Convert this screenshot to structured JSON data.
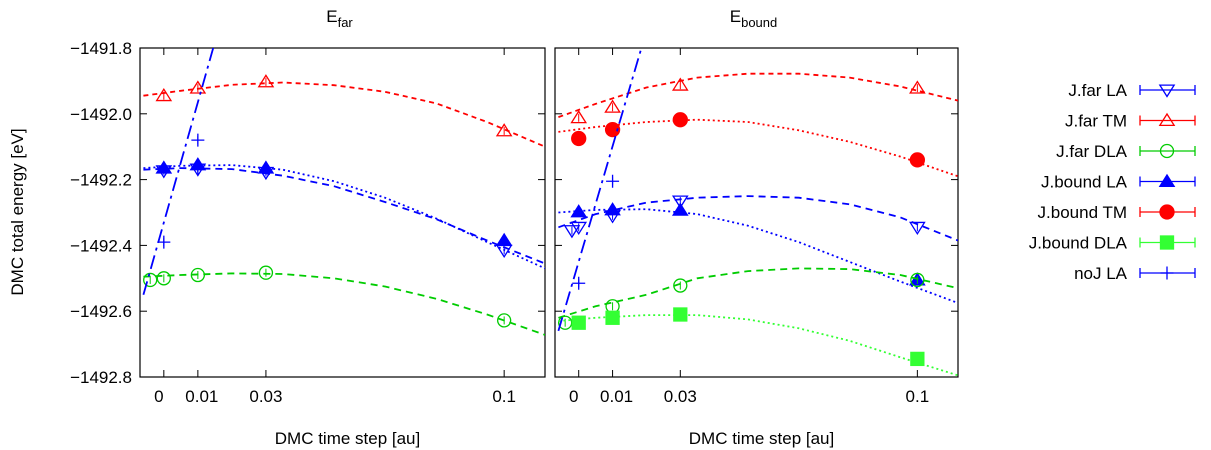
{
  "chart_data": {
    "type": "scatter",
    "ylabel": "DMC total energy [eV]",
    "ylim": [
      -1492.8,
      -1491.8
    ],
    "y_ticks": [
      -1491.8,
      -1492.0,
      -1492.2,
      -1492.4,
      -1492.6,
      -1492.8
    ],
    "y_tick_labels": [
      "−1491.8",
      "−1492.0",
      "−1492.2",
      "−1492.4",
      "−1492.6",
      "−1492.8"
    ],
    "xlim": [
      -0.007,
      0.112
    ],
    "x_ticks": [
      0,
      0.01,
      0.03,
      0.1
    ],
    "x_tick_labels": [
      "0",
      "0.01",
      "0.03",
      "0.1"
    ],
    "grid": false,
    "legend_position": "right",
    "legend": [
      {
        "name": "J.far LA",
        "color": "#0000ff",
        "marker": "triangle-down-open",
        "series": "jfar_la"
      },
      {
        "name": "J.far TM",
        "color": "#ff0000",
        "marker": "triangle-up-open",
        "series": "jfar_tm"
      },
      {
        "name": "J.far DLA",
        "color": "#00cc00",
        "marker": "circle-open",
        "series": "jfar_dla"
      },
      {
        "name": "J.bound LA",
        "color": "#0000ff",
        "marker": "triangle-up-filled",
        "series": "jbound_la"
      },
      {
        "name": "J.bound TM",
        "color": "#ff0000",
        "marker": "circle-filled",
        "series": "jbound_tm"
      },
      {
        "name": "J.bound DLA",
        "color": "#33ff33",
        "marker": "square-filled",
        "series": "jbound_dla"
      },
      {
        "name": "noJ LA",
        "color": "#0000ff",
        "marker": "plus",
        "series": "noj_la"
      }
    ],
    "panels": [
      {
        "title": "E",
        "title_subscript": "far",
        "xlabel": "DMC time step [au]",
        "series": [
          {
            "key": "jfar_tm",
            "color": "#ff0000",
            "marker": "triangle-up-open",
            "x": [
              0,
              0.01,
              0.03,
              0.1
            ],
            "y": [
              -1491.945,
              -1491.922,
              -1491.903,
              -1492.052
            ],
            "fit": {
              "x": [
                -0.006,
                0.005,
                0.02,
                0.035,
                0.05,
                0.065,
                0.08,
                0.095,
                0.112
              ],
              "y": [
                -1491.945,
                -1491.93,
                -1491.912,
                -1491.905,
                -1491.913,
                -1491.933,
                -1491.968,
                -1492.025,
                -1492.1
              ],
              "dash": "5,4"
            }
          },
          {
            "key": "jfar_la",
            "color": "#0000ff",
            "marker": "triangle-down-open",
            "x": [
              0,
              0.01,
              0.03,
              0.1
            ],
            "y": [
              -1492.173,
              -1492.168,
              -1492.178,
              -1492.415
            ],
            "fit": {
              "x": [
                -0.006,
                0.005,
                0.02,
                0.035,
                0.05,
                0.065,
                0.08,
                0.095,
                0.112
              ],
              "y": [
                -1492.17,
                -1492.165,
                -1492.168,
                -1492.188,
                -1492.22,
                -1492.268,
                -1492.32,
                -1492.385,
                -1492.455
              ],
              "dash": "7,5"
            }
          },
          {
            "key": "jbound_la",
            "color": "#0000ff",
            "marker": "triangle-up-filled",
            "x": [
              0,
              0.01,
              0.03,
              0.1
            ],
            "y": [
              -1492.165,
              -1492.155,
              -1492.165,
              -1492.385
            ],
            "fit": {
              "x": [
                -0.006,
                0.005,
                0.02,
                0.035,
                0.05,
                0.065,
                0.08,
                0.095,
                0.112
              ],
              "y": [
                -1492.165,
                -1492.158,
                -1492.156,
                -1492.17,
                -1492.205,
                -1492.255,
                -1492.318,
                -1492.39,
                -1492.47
              ],
              "dash": "2,3"
            }
          },
          {
            "key": "jfar_dla",
            "color": "#00cc00",
            "marker": "circle-open",
            "x": [
              -0.004,
              0,
              0.01,
              0.03,
              0.1
            ],
            "y": [
              -1492.505,
              -1492.5,
              -1492.49,
              -1492.483,
              -1492.628
            ],
            "fit": {
              "x": [
                -0.006,
                0.005,
                0.02,
                0.035,
                0.05,
                0.065,
                0.08,
                0.095,
                0.112
              ],
              "y": [
                -1492.495,
                -1492.49,
                -1492.485,
                -1492.487,
                -1492.5,
                -1492.525,
                -1492.562,
                -1492.61,
                -1492.672
              ],
              "dash": "7,5"
            }
          },
          {
            "key": "noj_la",
            "color": "#0000ff",
            "marker": "plus",
            "x": [
              0,
              0.01,
              0.01
            ],
            "y": [
              -1492.39,
              -1492.08,
              -1492.165
            ],
            "fit": {
              "x": [
                -0.006,
                0.0145
              ],
              "y": [
                -1492.55,
                -1491.8
              ],
              "dash": "14,5,3,5"
            }
          }
        ]
      },
      {
        "title": "E",
        "title_subscript": "bound",
        "xlabel": "DMC time step [au]",
        "series": [
          {
            "key": "jfar_tm",
            "color": "#ff0000",
            "marker": "triangle-up-open",
            "x": [
              0,
              0.01,
              0.03,
              0.1
            ],
            "y": [
              -1492.012,
              -1491.98,
              -1491.913,
              -1491.922
            ],
            "fit": {
              "x": [
                -0.006,
                0.005,
                0.02,
                0.035,
                0.05,
                0.065,
                0.08,
                0.095,
                0.112
              ],
              "y": [
                -1492.01,
                -1491.97,
                -1491.92,
                -1491.89,
                -1491.878,
                -1491.878,
                -1491.89,
                -1491.917,
                -1491.96
              ],
              "dash": "5,4"
            }
          },
          {
            "key": "jbound_tm",
            "color": "#ff0000",
            "marker": "circle-filled",
            "x": [
              0,
              0.01,
              0.03,
              0.1
            ],
            "y": [
              -1492.075,
              -1492.048,
              -1492.018,
              -1492.14
            ],
            "fit": {
              "x": [
                -0.006,
                0.005,
                0.02,
                0.035,
                0.05,
                0.065,
                0.08,
                0.095,
                0.112
              ],
              "y": [
                -1492.055,
                -1492.04,
                -1492.025,
                -1492.018,
                -1492.025,
                -1492.05,
                -1492.085,
                -1492.13,
                -1492.19
              ],
              "dash": "2,3"
            }
          },
          {
            "key": "jfar_la",
            "color": "#0000ff",
            "marker": "triangle-down-open",
            "x": [
              -0.002,
              0,
              0.01,
              0.03,
              0.1
            ],
            "y": [
              -1492.355,
              -1492.345,
              -1492.31,
              -1492.265,
              -1492.345
            ],
            "fit": {
              "x": [
                -0.006,
                0.005,
                0.02,
                0.035,
                0.05,
                0.065,
                0.08,
                0.095,
                0.112
              ],
              "y": [
                -1492.345,
                -1492.305,
                -1492.27,
                -1492.255,
                -1492.25,
                -1492.255,
                -1492.275,
                -1492.315,
                -1492.385
              ],
              "dash": "7,5"
            }
          },
          {
            "key": "jbound_la",
            "color": "#0000ff",
            "marker": "triangle-up-filled",
            "x": [
              0,
              0.01,
              0.03,
              0.1
            ],
            "y": [
              -1492.298,
              -1492.292,
              -1492.293,
              -1492.505
            ],
            "fit": {
              "x": [
                -0.006,
                0.005,
                0.02,
                0.035,
                0.05,
                0.065,
                0.08,
                0.095,
                0.112
              ],
              "y": [
                -1492.3,
                -1492.292,
                -1492.29,
                -1492.305,
                -1492.34,
                -1492.39,
                -1492.45,
                -1492.51,
                -1492.575
              ],
              "dash": "2,3"
            }
          },
          {
            "key": "jfar_dla",
            "color": "#00cc00",
            "marker": "circle-open",
            "x": [
              -0.004,
              0.01,
              0.03,
              0.1
            ],
            "y": [
              -1492.635,
              -1492.585,
              -1492.522,
              -1492.505
            ],
            "fit": {
              "x": [
                -0.006,
                0.005,
                0.02,
                0.035,
                0.05,
                0.065,
                0.08,
                0.095,
                0.112
              ],
              "y": [
                -1492.62,
                -1492.585,
                -1492.55,
                -1492.5,
                -1492.478,
                -1492.47,
                -1492.472,
                -1492.49,
                -1492.53
              ],
              "dash": "7,5"
            }
          },
          {
            "key": "jbound_dla",
            "color": "#33ff33",
            "marker": "square-filled",
            "x": [
              0,
              0.01,
              0.03,
              0.1
            ],
            "y": [
              -1492.635,
              -1492.62,
              -1492.61,
              -1492.745
            ],
            "fit": {
              "x": [
                -0.006,
                0.005,
                0.02,
                0.035,
                0.05,
                0.065,
                0.08,
                0.095,
                0.112
              ],
              "y": [
                -1492.63,
                -1492.62,
                -1492.612,
                -1492.612,
                -1492.625,
                -1492.652,
                -1492.69,
                -1492.74,
                -1492.795
              ],
              "dash": "2,3"
            }
          },
          {
            "key": "noj_la",
            "color": "#0000ff",
            "marker": "plus",
            "x": [
              0,
              0.01
            ],
            "y": [
              -1492.515,
              -1492.205
            ],
            "fit": {
              "x": [
                -0.006,
                0.0185
              ],
              "y": [
                -1492.66,
                -1491.8
              ],
              "dash": "14,5,3,5"
            }
          }
        ]
      }
    ]
  }
}
